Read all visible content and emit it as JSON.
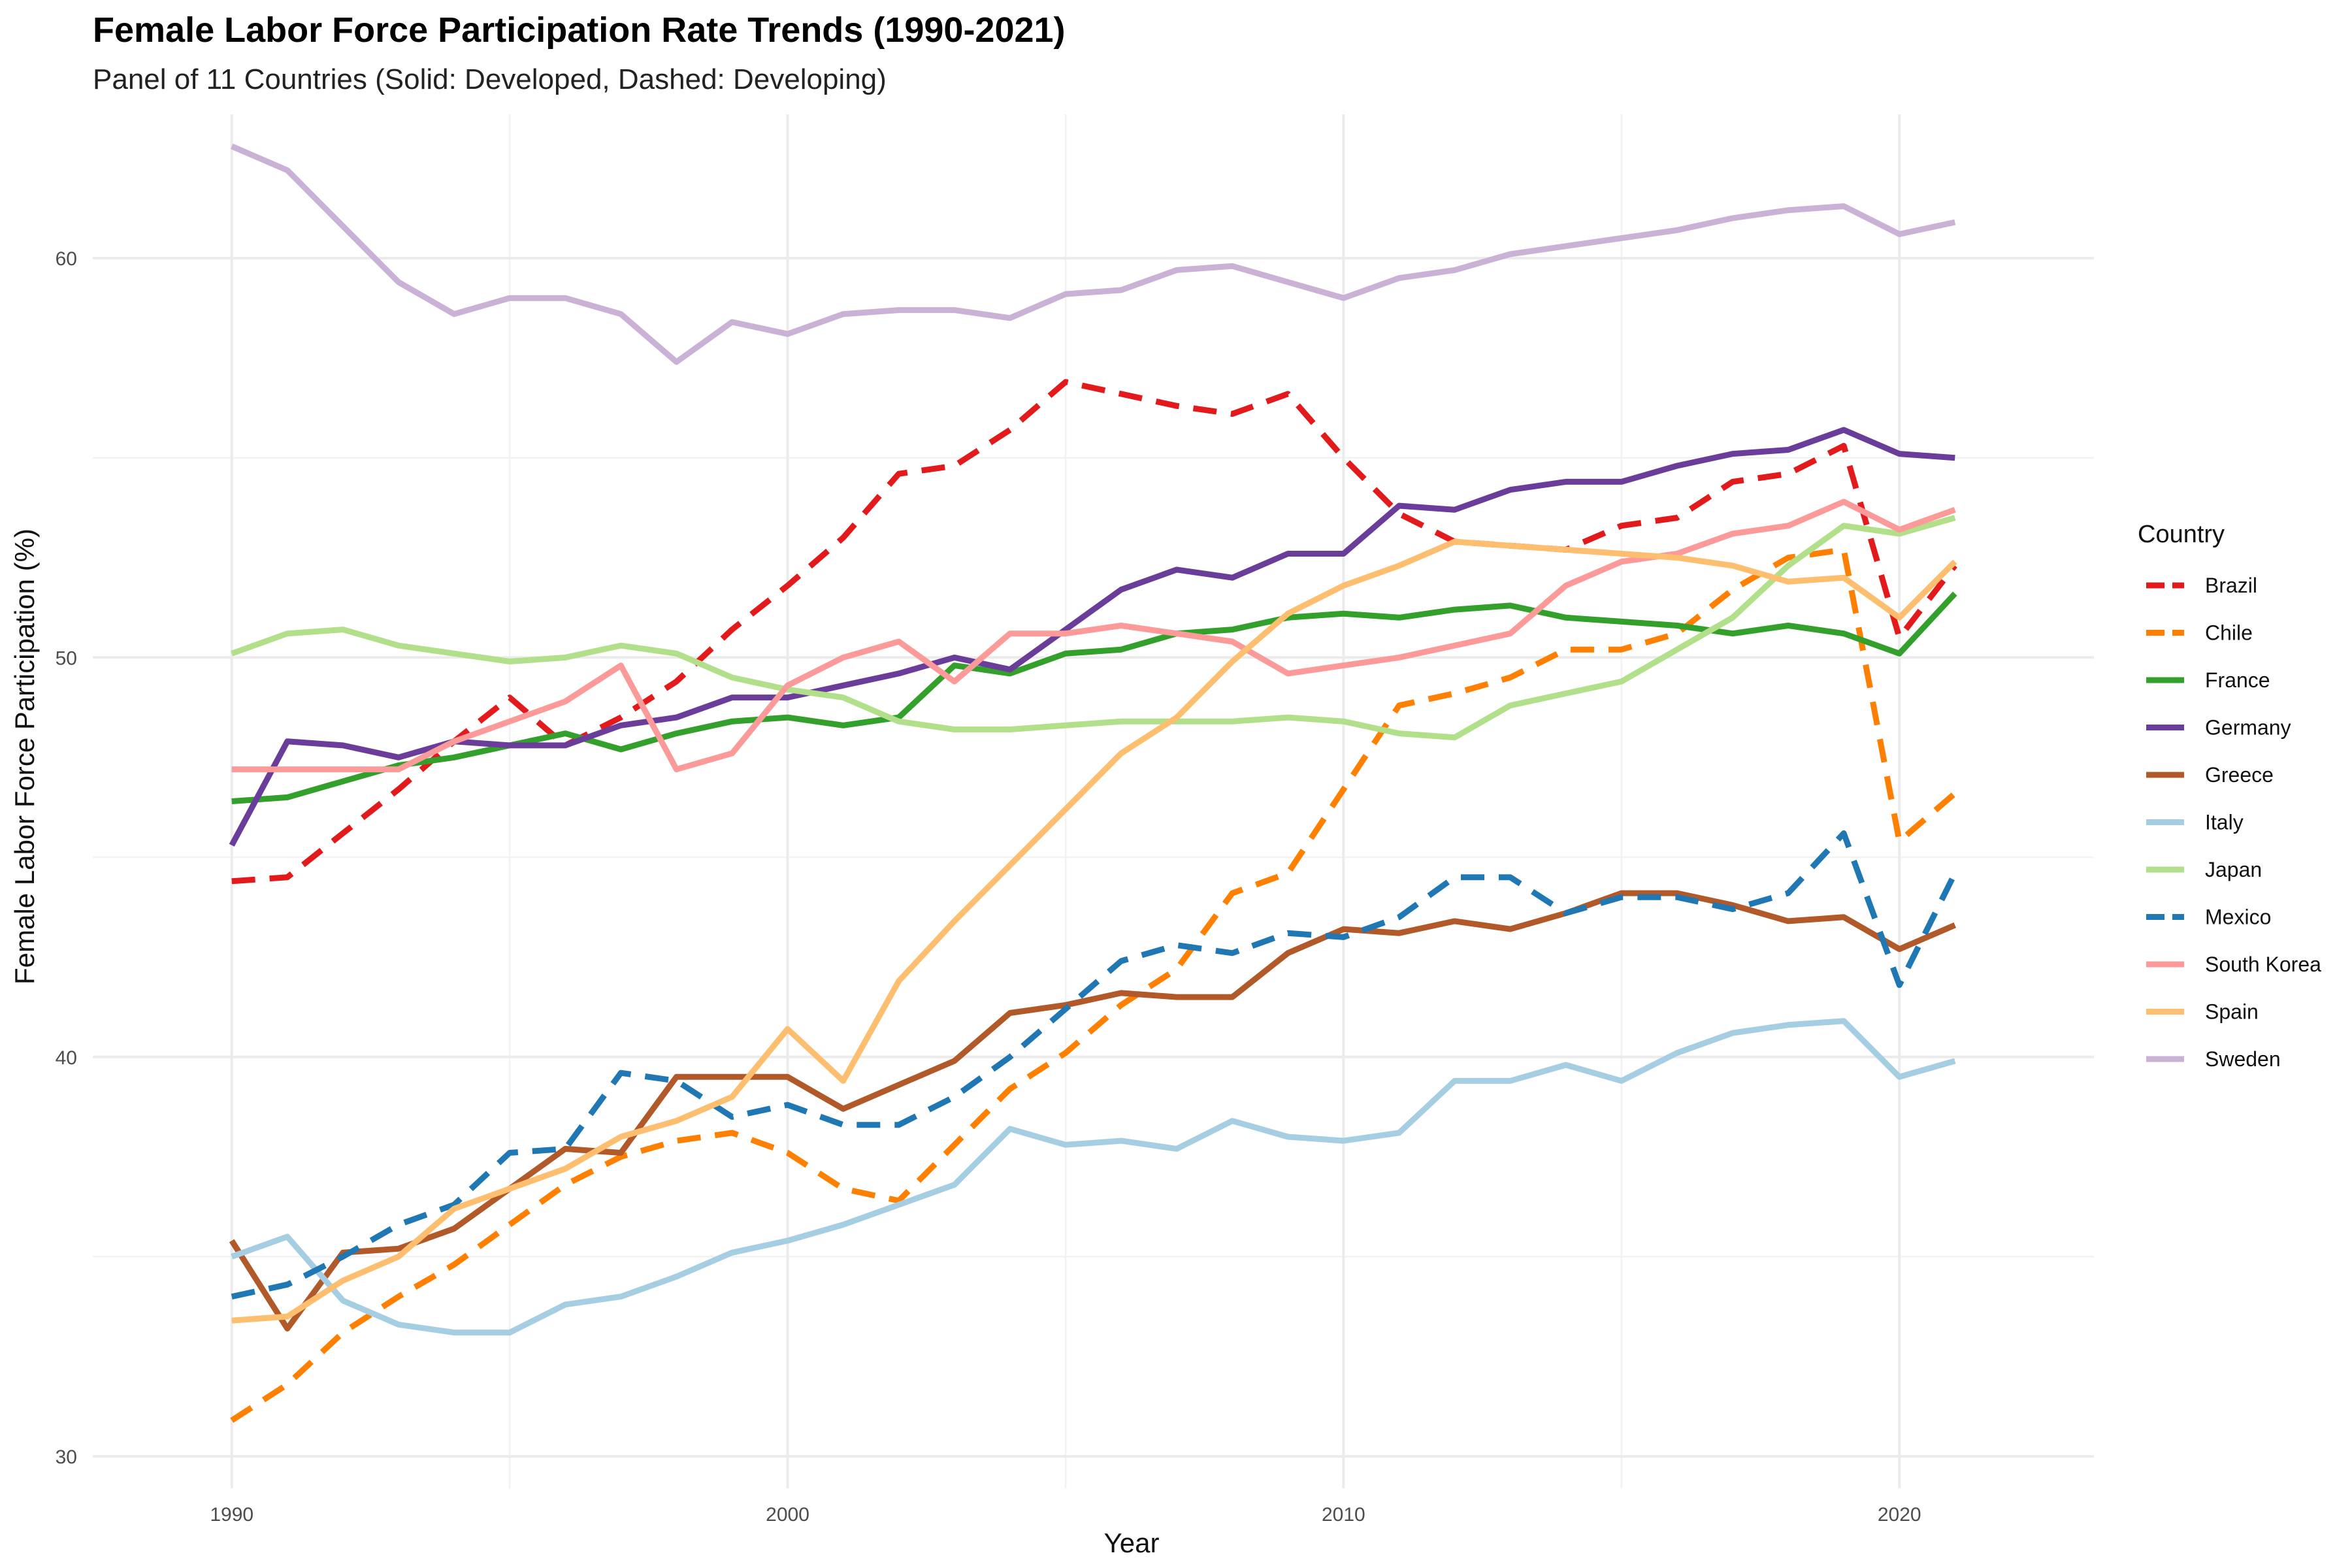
{
  "chart_data": {
    "type": "line",
    "title": "Female Labor Force Participation Rate Trends (1990-2021)",
    "subtitle": "Panel of 11 Countries (Solid: Developed, Dashed: Developing)",
    "xlabel": "Year",
    "ylabel": "Female Labor Force Participation (%)",
    "xlim": [
      1987.5,
      2023.5
    ],
    "ylim": [
      29.2,
      63.6
    ],
    "x_ticks": [
      1990,
      2000,
      2010,
      2020
    ],
    "x_tick_labels": [
      "1990",
      "2000",
      "2010",
      "2020"
    ],
    "y_ticks": [
      30,
      40,
      50,
      60
    ],
    "y_tick_labels": [
      "30",
      "40",
      "50",
      "60"
    ],
    "x_minor": [
      1995,
      2005,
      2015
    ],
    "y_minor": [
      35,
      45,
      55
    ],
    "grid": true,
    "legend": {
      "title": "Country",
      "placement": "right"
    },
    "x": [
      1990,
      1991,
      1992,
      1993,
      1994,
      1995,
      1996,
      1997,
      1998,
      1999,
      2000,
      2001,
      2002,
      2003,
      2004,
      2005,
      2006,
      2007,
      2008,
      2009,
      2010,
      2011,
      2012,
      2013,
      2014,
      2015,
      2016,
      2017,
      2018,
      2019,
      2020,
      2021
    ],
    "series": [
      {
        "name": "Brazil",
        "color": "#e31a1c",
        "dash": true,
        "values": [
          44.4,
          44.5,
          45.6,
          46.7,
          47.9,
          49.0,
          47.8,
          48.5,
          49.4,
          50.7,
          51.8,
          53.0,
          54.6,
          54.8,
          55.7,
          56.9,
          56.6,
          56.3,
          56.1,
          56.6,
          55.0,
          53.6,
          52.9,
          52.8,
          52.7,
          53.3,
          53.5,
          54.4,
          54.6,
          55.3,
          50.5,
          52.3
        ]
      },
      {
        "name": "Chile",
        "color": "#ff7f00",
        "dash": true,
        "values": [
          30.9,
          31.8,
          33.1,
          34.0,
          34.8,
          35.8,
          36.8,
          37.5,
          37.9,
          38.1,
          37.6,
          36.7,
          36.4,
          37.8,
          39.2,
          40.1,
          41.3,
          42.2,
          44.1,
          44.6,
          46.7,
          48.8,
          49.1,
          49.5,
          50.2,
          50.2,
          50.6,
          51.7,
          52.5,
          52.7,
          45.4,
          46.6
        ]
      },
      {
        "name": "France",
        "color": "#33a02c",
        "dash": false,
        "values": [
          46.4,
          46.5,
          46.9,
          47.3,
          47.5,
          47.8,
          48.1,
          47.7,
          48.1,
          48.4,
          48.5,
          48.3,
          48.5,
          49.8,
          49.6,
          50.1,
          50.2,
          50.6,
          50.7,
          51.0,
          51.1,
          51.0,
          51.2,
          51.3,
          51.0,
          50.9,
          50.8,
          50.6,
          50.8,
          50.6,
          50.1,
          51.6
        ]
      },
      {
        "name": "Germany",
        "color": "#6a3d9a",
        "dash": false,
        "values": [
          45.3,
          47.9,
          47.8,
          47.5,
          47.9,
          47.8,
          47.8,
          48.3,
          48.5,
          49.0,
          49.0,
          49.3,
          49.6,
          50.0,
          49.7,
          50.7,
          51.7,
          52.2,
          52.0,
          52.6,
          52.6,
          53.8,
          53.7,
          54.2,
          54.4,
          54.4,
          54.8,
          55.1,
          55.2,
          55.7,
          55.1,
          55.0
        ]
      },
      {
        "name": "Greece",
        "color": "#b15928",
        "dash": false,
        "values": [
          35.4,
          33.2,
          35.1,
          35.2,
          35.7,
          36.7,
          37.7,
          37.6,
          39.5,
          39.5,
          39.5,
          38.7,
          39.3,
          39.9,
          41.1,
          41.3,
          41.6,
          41.5,
          41.5,
          42.6,
          43.2,
          43.1,
          43.4,
          43.2,
          43.6,
          44.1,
          44.1,
          43.8,
          43.4,
          43.5,
          42.7,
          43.3
        ]
      },
      {
        "name": "Italy",
        "color": "#a6cee3",
        "dash": false,
        "values": [
          35.0,
          35.5,
          33.9,
          33.3,
          33.1,
          33.1,
          33.8,
          34.0,
          34.5,
          35.1,
          35.4,
          35.8,
          36.3,
          36.8,
          38.2,
          37.8,
          37.9,
          37.7,
          38.4,
          38.0,
          37.9,
          38.1,
          39.4,
          39.4,
          39.8,
          39.4,
          40.1,
          40.6,
          40.8,
          40.9,
          39.5,
          39.9
        ]
      },
      {
        "name": "Japan",
        "color": "#b2df8a",
        "dash": false,
        "values": [
          50.1,
          50.6,
          50.7,
          50.3,
          50.1,
          49.9,
          50.0,
          50.3,
          50.1,
          49.5,
          49.2,
          49.0,
          48.4,
          48.2,
          48.2,
          48.3,
          48.4,
          48.4,
          48.4,
          48.5,
          48.4,
          48.1,
          48.0,
          48.8,
          49.1,
          49.4,
          50.2,
          51.0,
          52.3,
          53.3,
          53.1,
          53.5
        ]
      },
      {
        "name": "Mexico",
        "color": "#1f78b4",
        "dash": true,
        "values": [
          34.0,
          34.3,
          35.0,
          35.8,
          36.3,
          37.6,
          37.7,
          39.6,
          39.4,
          38.5,
          38.8,
          38.3,
          38.3,
          39.0,
          40.0,
          41.2,
          42.4,
          42.8,
          42.6,
          43.1,
          43.0,
          43.5,
          44.5,
          44.5,
          43.6,
          44.0,
          44.0,
          43.7,
          44.1,
          45.6,
          41.8,
          44.6
        ]
      },
      {
        "name": "South Korea",
        "color": "#fb9a99",
        "dash": false,
        "values": [
          47.2,
          47.2,
          47.2,
          47.2,
          47.9,
          48.4,
          48.9,
          49.8,
          47.2,
          47.6,
          49.3,
          50.0,
          50.4,
          49.4,
          50.6,
          50.6,
          50.8,
          50.6,
          50.4,
          49.6,
          49.8,
          50.0,
          50.3,
          50.6,
          51.8,
          52.4,
          52.6,
          53.1,
          53.3,
          53.9,
          53.2,
          53.7
        ]
      },
      {
        "name": "Spain",
        "color": "#fdbf6f",
        "dash": false,
        "values": [
          33.4,
          33.5,
          34.4,
          35.0,
          36.2,
          36.7,
          37.2,
          38.0,
          38.4,
          39.0,
          40.7,
          39.4,
          41.9,
          43.4,
          44.8,
          46.2,
          47.6,
          48.5,
          49.9,
          51.1,
          51.8,
          52.3,
          52.9,
          52.8,
          52.7,
          52.6,
          52.5,
          52.3,
          51.9,
          52.0,
          51.0,
          52.4
        ]
      },
      {
        "name": "Sweden",
        "color": "#cab2d6",
        "dash": false,
        "values": [
          62.8,
          62.2,
          60.8,
          59.4,
          58.6,
          59.0,
          59.0,
          58.6,
          57.4,
          58.4,
          58.1,
          58.6,
          58.7,
          58.7,
          58.5,
          59.1,
          59.2,
          59.7,
          59.8,
          59.4,
          59.0,
          59.5,
          59.7,
          60.1,
          60.3,
          60.5,
          60.7,
          61.0,
          61.2,
          61.3,
          60.6,
          60.9
        ]
      }
    ]
  }
}
